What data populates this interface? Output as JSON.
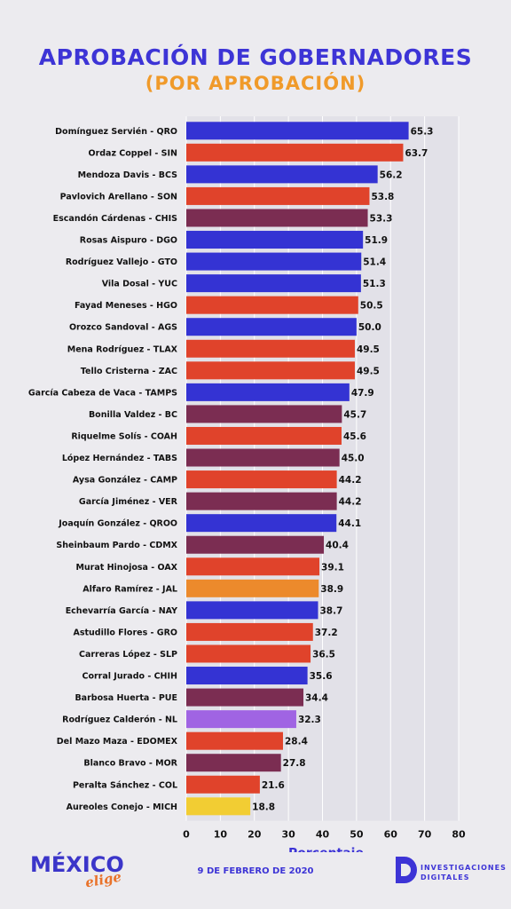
{
  "header": {
    "title": "APROBACIÓN DE GOBERNADORES",
    "subtitle": "(POR APROBACIÓN)"
  },
  "colors": {
    "blue": "#3433d3",
    "red": "#e0432b",
    "maroon": "#7b2d52",
    "orange": "#ec8a2c",
    "purple": "#a064e3",
    "yellow": "#f2cd33"
  },
  "chart_data": {
    "type": "bar",
    "orientation": "horizontal",
    "xlabel": "Porcentaje",
    "xlim": [
      0,
      80
    ],
    "xticks": [
      0,
      10,
      20,
      30,
      40,
      50,
      60,
      70,
      80
    ],
    "grid": true,
    "categories": [
      "Domínguez Servién - QRO",
      "Ordaz Coppel - SIN",
      "Mendoza Davis - BCS",
      "Pavlovich Arellano - SON",
      "Escandón Cárdenas - CHIS",
      "Rosas Aispuro - DGO",
      "Rodríguez Vallejo - GTO",
      "Vila Dosal - YUC",
      "Fayad Meneses - HGO",
      "Orozco Sandoval - AGS",
      "Mena Rodríguez - TLAX",
      "Tello Cristerna - ZAC",
      "García Cabeza de Vaca - TAMPS",
      "Bonilla Valdez - BC",
      "Riquelme Solís - COAH",
      "López Hernández - TABS",
      "Aysa González - CAMP",
      "García Jiménez - VER",
      "Joaquín González - QROO",
      "Sheinbaum Pardo - CDMX",
      "Murat Hinojosa - OAX",
      "Alfaro Ramírez - JAL",
      "Echevarría García - NAY",
      "Astudillo Flores - GRO",
      "Carreras López - SLP",
      "Corral Jurado - CHIH",
      "Barbosa Huerta - PUE",
      "Rodríguez Calderón - NL",
      "Del Mazo Maza - EDOMEX",
      "Blanco Bravo - MOR",
      "Peralta Sánchez - COL",
      "Aureoles Conejo - MICH"
    ],
    "values": [
      65.3,
      63.7,
      56.2,
      53.8,
      53.3,
      51.9,
      51.4,
      51.3,
      50.5,
      50.0,
      49.5,
      49.5,
      47.9,
      45.7,
      45.6,
      45.0,
      44.2,
      44.2,
      44.1,
      40.4,
      39.1,
      38.9,
      38.7,
      37.2,
      36.5,
      35.6,
      34.4,
      32.3,
      28.4,
      27.8,
      21.6,
      18.8
    ],
    "value_labels": [
      "65.3",
      "63.7",
      "56.2",
      "53.8",
      "53.3",
      "51.9",
      "51.4",
      "51.3",
      "50.5",
      "50.0",
      "49.5",
      "49.5",
      "47.9",
      "45.7",
      "45.6",
      "45.0",
      "44.2",
      "44.2",
      "44.1",
      "40.4",
      "39.1",
      "38.9",
      "38.7",
      "37.2",
      "36.5",
      "35.6",
      "34.4",
      "32.3",
      "28.4",
      "27.8",
      "21.6",
      "18.8"
    ],
    "bar_colors": [
      "blue",
      "red",
      "blue",
      "red",
      "maroon",
      "blue",
      "blue",
      "blue",
      "red",
      "blue",
      "red",
      "red",
      "blue",
      "maroon",
      "red",
      "maroon",
      "red",
      "maroon",
      "blue",
      "maroon",
      "red",
      "orange",
      "blue",
      "red",
      "red",
      "blue",
      "maroon",
      "purple",
      "red",
      "maroon",
      "red",
      "yellow"
    ]
  },
  "footer": {
    "logo_main": "MÉXICO",
    "logo_sub": "elige",
    "date": "9 DE FEBRERO DE 2020",
    "brand_line1": "INVESTIGACIONES",
    "brand_line2": "DIGITALES",
    "brand_icon": "d-logo-icon"
  }
}
